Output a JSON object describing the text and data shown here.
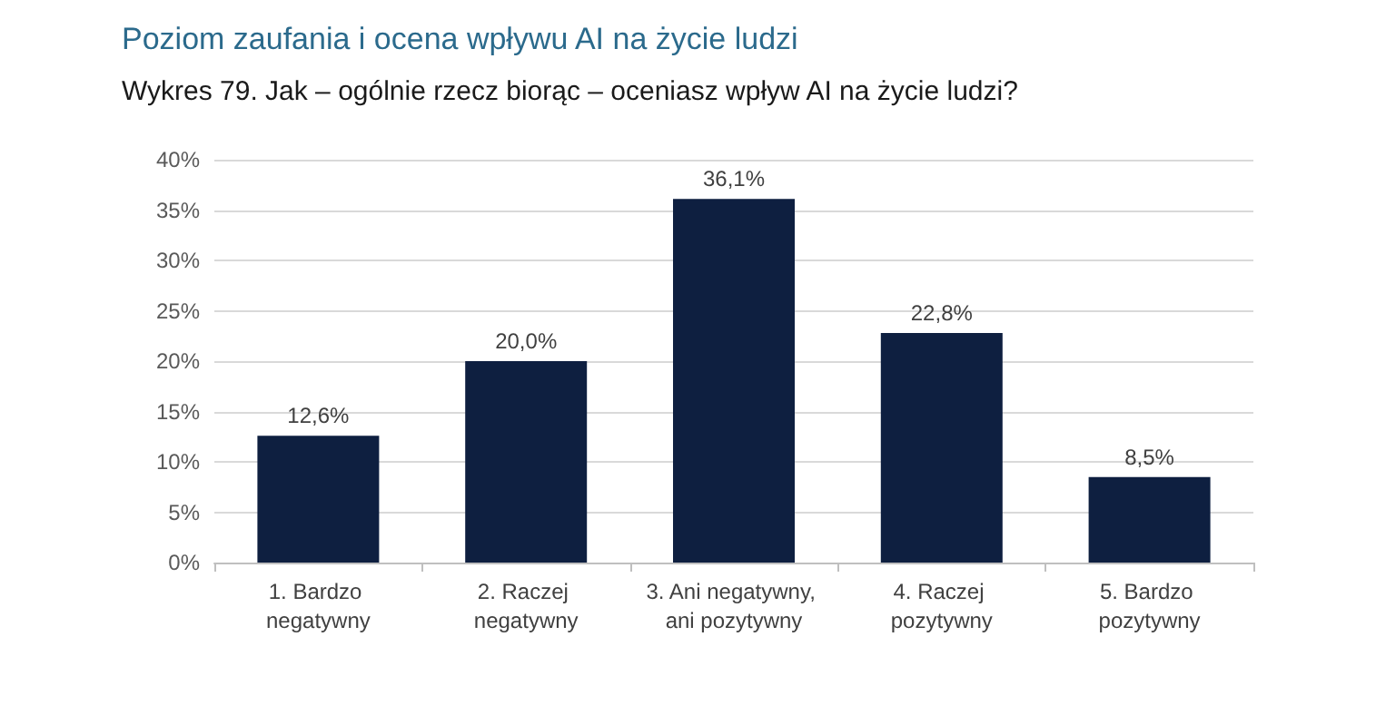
{
  "chart_data": {
    "type": "bar",
    "title": "Poziom zaufania i ocena wpływu AI na życie ludzi",
    "subtitle": "Wykres 79. Jak – ogólnie rzecz biorąc – oceniasz wpływ AI na życie ludzi?",
    "categories": [
      "1. Bardzo negatywny",
      "2. Raczej negatywny",
      "3. Ani negatywny, ani pozytywny",
      "4. Raczej pozytywny",
      "5. Bardzo pozytywny"
    ],
    "values": [
      12.6,
      20.0,
      36.1,
      22.8,
      8.5
    ],
    "value_labels": [
      "12,6%",
      "20,0%",
      "36,1%",
      "22,8%",
      "8,5%"
    ],
    "color": "#0e1f40",
    "ylim": [
      0,
      40
    ],
    "yticks": [
      {
        "value": 0,
        "label": "0%"
      },
      {
        "value": 5,
        "label": "5%"
      },
      {
        "value": 10,
        "label": "10%"
      },
      {
        "value": 15,
        "label": "15%"
      },
      {
        "value": 20,
        "label": "20%"
      },
      {
        "value": 25,
        "label": "25%"
      },
      {
        "value": 30,
        "label": "30%"
      },
      {
        "value": 35,
        "label": "35%"
      },
      {
        "value": 40,
        "label": "40%"
      }
    ],
    "grid": "y"
  }
}
